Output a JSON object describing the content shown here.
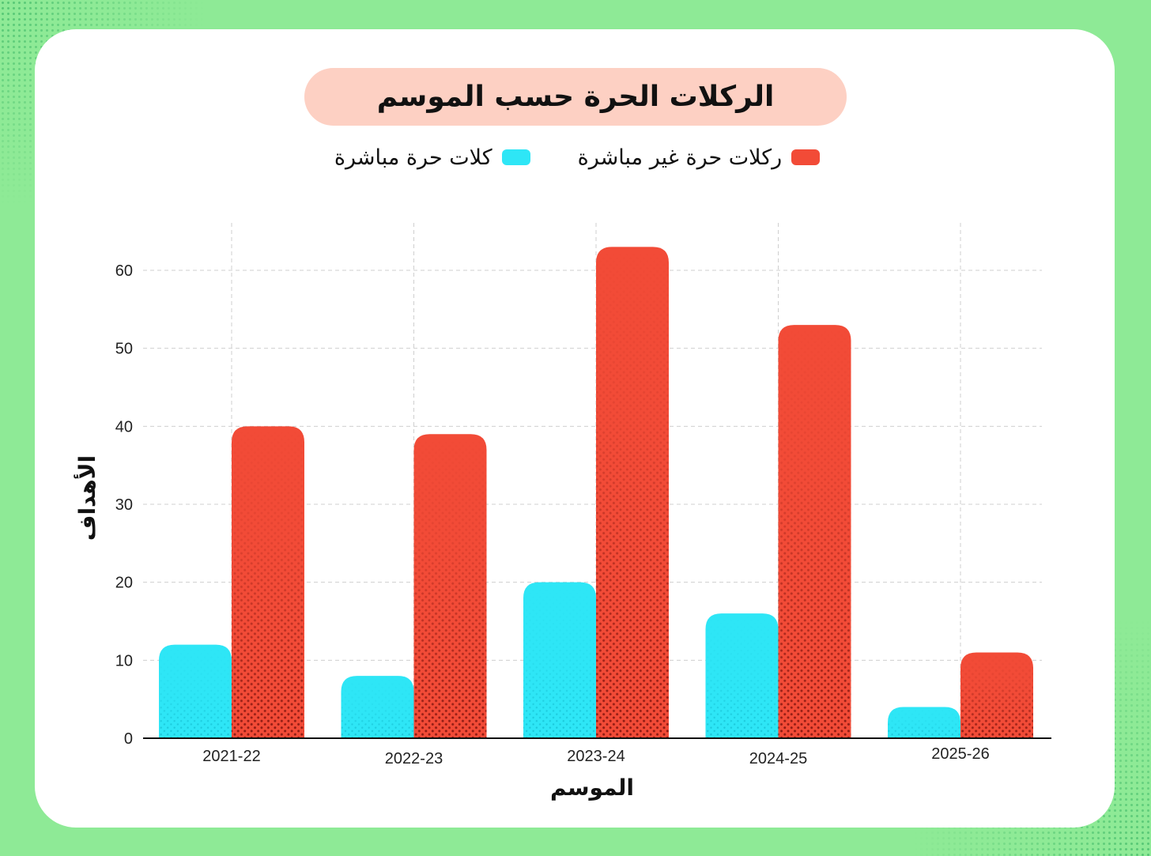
{
  "chart_data": {
    "type": "bar",
    "title": "الركلات الحرة حسب الموسم",
    "xlabel": "الموسم",
    "ylabel": "الأهداف",
    "categories": [
      "2021-22",
      "2022-23",
      "2023-24",
      "2024-25",
      "2025-26"
    ],
    "series": [
      {
        "name": "كلات حرة مباشرة",
        "color": "#2ee6f6",
        "values": [
          12,
          8,
          20,
          16,
          4
        ]
      },
      {
        "name": "ركلات حرة غير مباشرة",
        "color": "#f24b37",
        "values": [
          40,
          39,
          63,
          53,
          11
        ]
      }
    ],
    "ylim": [
      0,
      65
    ],
    "yticks": [
      0,
      10,
      20,
      30,
      40,
      50,
      60
    ],
    "grid": true,
    "legend_position": "top-center"
  },
  "colors": {
    "background": "#8eea96",
    "card": "#ffffff",
    "title_pill": "#fdd0c3",
    "direct": "#2ee6f6",
    "indirect": "#f24b37",
    "indirect_dark": "#8a1a12"
  }
}
